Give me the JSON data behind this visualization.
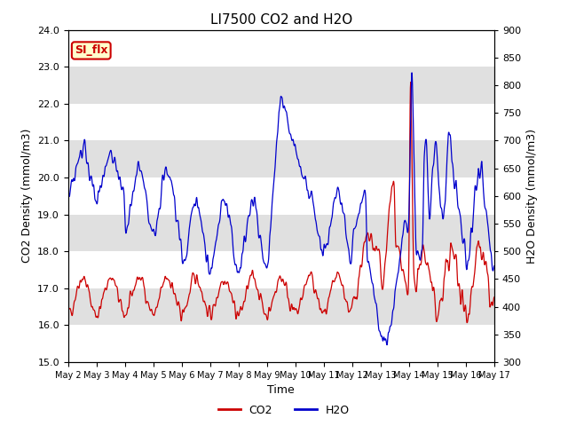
{
  "title": "LI7500 CO2 and H2O",
  "xlabel": "Time",
  "ylabel_left": "CO2 Density (mmol/m3)",
  "ylabel_right": "H2O Density (mmol/m3)",
  "ylim_left": [
    15.0,
    24.0
  ],
  "ylim_right": [
    300,
    900
  ],
  "xtick_labels": [
    "May 2",
    "May 3",
    "May 4",
    "May 5",
    "May 6",
    "May 7",
    "May 8",
    "May 9",
    "May 10",
    "May 11",
    "May 12",
    "May 13",
    "May 14",
    "May 15",
    "May 16",
    "May 17"
  ],
  "annotation_text": "SI_flx",
  "annotation_bg": "#ffffcc",
  "annotation_border": "#cc0000",
  "co2_color": "#cc0000",
  "h2o_color": "#0000cc",
  "legend_co2": "CO2",
  "legend_h2o": "H2O",
  "background_color": "#ffffff",
  "grid_band_color": "#e0e0e0",
  "figsize": [
    6.4,
    4.8
  ],
  "dpi": 100
}
